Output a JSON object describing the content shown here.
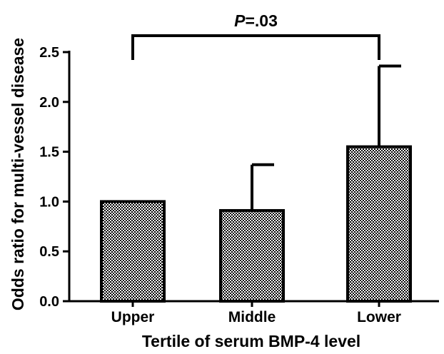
{
  "chart_data": {
    "type": "bar",
    "title": "",
    "xlabel": "Tertile of serum BMP-4 level",
    "ylabel": "Odds ratio for multi-vessel disease",
    "categories": [
      "Upper",
      "Middle",
      "Lower"
    ],
    "values": [
      1.0,
      0.91,
      1.55
    ],
    "error_upper": [
      1.0,
      1.37,
      2.36
    ],
    "ylim": [
      0,
      2.5
    ],
    "yticks": [
      0.0,
      0.5,
      1.0,
      1.5,
      2.0,
      2.5
    ],
    "ytick_labels": [
      "0.0",
      "0.5",
      "1.0",
      "1.5",
      "2.0",
      "2.5"
    ],
    "grid": false,
    "legend": "none",
    "bar_fill": "checkered black/white",
    "annotation": {
      "text_italic": "P",
      "text_rest": "=.03",
      "bracket_from": "Upper",
      "bracket_to": "Lower"
    }
  }
}
